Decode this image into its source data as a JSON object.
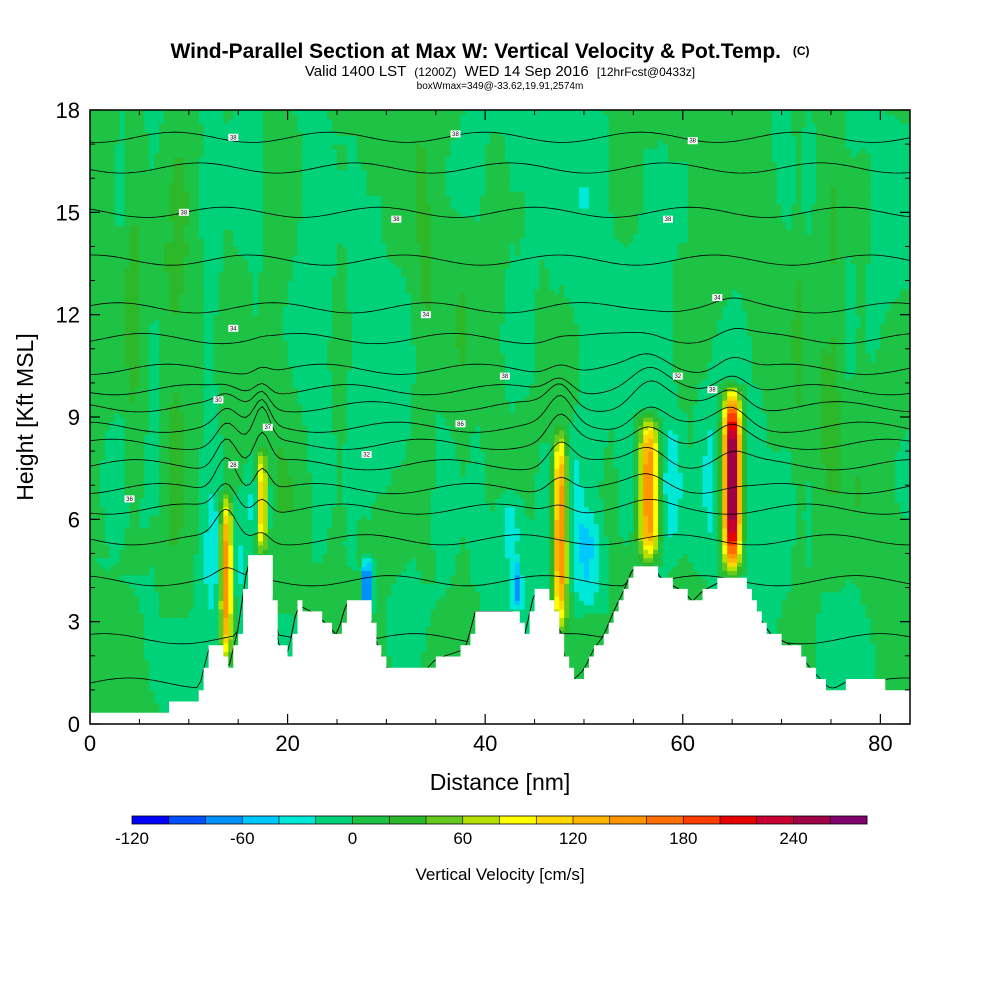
{
  "chart_data": {
    "type": "heatmap",
    "title": "Wind-Parallel Section at Max W: Vertical Velocity & Pot.Temp.",
    "title_mark": "(C)",
    "subtitle_parts": [
      "Valid 1400 LST",
      "(1200Z)",
      "WED 14 Sep 2016",
      "[12hrFcst@0433z]"
    ],
    "subtitle2": "boxWmax=349@-33.62,19.91,2574m",
    "xlabel": "Distance [nm]",
    "ylabel": "Height [Kft MSL]",
    "xlim": [
      0,
      83
    ],
    "ylim": [
      0,
      18
    ],
    "x_ticks": [
      "0",
      "20",
      "40",
      "60",
      "80"
    ],
    "y_ticks": [
      "0",
      "3",
      "6",
      "9",
      "12",
      "15",
      "18"
    ],
    "colorbar": {
      "title": "Vertical Velocity [cm/s]",
      "min": -120,
      "max": 280,
      "step": 20,
      "labels": [
        "-120",
        "-60",
        "0",
        "60",
        "120",
        "180",
        "240"
      ],
      "colors": [
        "#0000ff",
        "#0050ff",
        "#0090ff",
        "#00c8ff",
        "#00e8d8",
        "#00d27a",
        "#1ec244",
        "#2db82a",
        "#64c81e",
        "#b4e000",
        "#ffff00",
        "#ffd800",
        "#ffb400",
        "#ff9600",
        "#ff6e00",
        "#ff3c00",
        "#e60000",
        "#c80032",
        "#a00046",
        "#82006e"
      ]
    },
    "ground_profile": [
      {
        "x": 0,
        "h": 0.35
      },
      {
        "x": 5,
        "h": 0.35
      },
      {
        "x": 10,
        "h": 0.6
      },
      {
        "x": 11,
        "h": 1.0
      },
      {
        "x": 12,
        "h": 2.2
      },
      {
        "x": 13,
        "h": 2.2
      },
      {
        "x": 14,
        "h": 1.6
      },
      {
        "x": 15,
        "h": 2.8
      },
      {
        "x": 16,
        "h": 4.8
      },
      {
        "x": 18,
        "h": 4.8
      },
      {
        "x": 19,
        "h": 2.4
      },
      {
        "x": 20,
        "h": 2.0
      },
      {
        "x": 21,
        "h": 3.5
      },
      {
        "x": 23,
        "h": 3.2
      },
      {
        "x": 25,
        "h": 2.6
      },
      {
        "x": 26,
        "h": 3.6
      },
      {
        "x": 28,
        "h": 3.6
      },
      {
        "x": 29,
        "h": 2.4
      },
      {
        "x": 30,
        "h": 1.6
      },
      {
        "x": 34,
        "h": 1.6
      },
      {
        "x": 35,
        "h": 1.9
      },
      {
        "x": 38,
        "h": 2.2
      },
      {
        "x": 39,
        "h": 3.3
      },
      {
        "x": 43,
        "h": 3.3
      },
      {
        "x": 44,
        "h": 2.6
      },
      {
        "x": 45,
        "h": 3.9
      },
      {
        "x": 46,
        "h": 3.9
      },
      {
        "x": 47,
        "h": 3.3
      },
      {
        "x": 48,
        "h": 2.0
      },
      {
        "x": 49,
        "h": 1.3
      },
      {
        "x": 50,
        "h": 1.6
      },
      {
        "x": 51,
        "h": 2.2
      },
      {
        "x": 52,
        "h": 2.6
      },
      {
        "x": 53,
        "h": 3.3
      },
      {
        "x": 54,
        "h": 3.9
      },
      {
        "x": 55,
        "h": 4.6
      },
      {
        "x": 57,
        "h": 4.6
      },
      {
        "x": 58,
        "h": 4.2
      },
      {
        "x": 60,
        "h": 3.9
      },
      {
        "x": 61,
        "h": 3.6
      },
      {
        "x": 62,
        "h": 3.9
      },
      {
        "x": 64,
        "h": 4.2
      },
      {
        "x": 66,
        "h": 4.2
      },
      {
        "x": 67,
        "h": 3.6
      },
      {
        "x": 68,
        "h": 3.0
      },
      {
        "x": 69,
        "h": 2.6
      },
      {
        "x": 71,
        "h": 2.3
      },
      {
        "x": 72,
        "h": 2.0
      },
      {
        "x": 73,
        "h": 1.6
      },
      {
        "x": 74,
        "h": 1.3
      },
      {
        "x": 75,
        "h": 1.0
      },
      {
        "x": 77,
        "h": 1.3
      },
      {
        "x": 80,
        "h": 1.3
      },
      {
        "x": 81,
        "h": 1.0
      },
      {
        "x": 83,
        "h": 1.0
      }
    ],
    "updrafts": [
      {
        "x": 13.8,
        "base": 1.6,
        "top": 7.0,
        "peak": 150,
        "halfwidth": 0.6
      },
      {
        "x": 17.4,
        "base": 4.8,
        "top": 8.2,
        "peak": 110,
        "halfwidth": 0.45
      },
      {
        "x": 47.6,
        "base": 2.5,
        "top": 8.9,
        "peak": 160,
        "halfwidth": 0.7
      },
      {
        "x": 56.6,
        "base": 4.6,
        "top": 9.3,
        "peak": 170,
        "halfwidth": 1.0
      },
      {
        "x": 65.0,
        "base": 4.2,
        "top": 10.1,
        "peak": 280,
        "halfwidth": 0.9
      }
    ],
    "downdrafts": [
      {
        "x": 28.0,
        "base": 3.0,
        "top": 5.0,
        "peak": -110,
        "halfwidth": 0.5
      },
      {
        "x": 43.2,
        "base": 3.3,
        "top": 5.0,
        "peak": -70,
        "halfwidth": 0.5
      },
      {
        "x": 50.5,
        "base": 3.0,
        "top": 6.5,
        "peak": -40,
        "halfwidth": 1.2
      },
      {
        "x": 42.5,
        "base": 4.5,
        "top": 7.0,
        "peak": -35,
        "halfwidth": 1.2
      }
    ],
    "theta_contours": [
      {
        "base": 1.2,
        "amp": 0.4
      },
      {
        "base": 2.5,
        "amp": 0.8
      },
      {
        "base": 4.2,
        "amp": 1.0
      },
      {
        "base": 5.4,
        "amp": 1.2
      },
      {
        "base": 6.3,
        "amp": 0.8
      },
      {
        "base": 6.9,
        "amp": 0.9
      },
      {
        "base": 7.6,
        "amp": 0.9
      },
      {
        "base": 8.2,
        "amp": 0.8
      },
      {
        "base": 8.7,
        "amp": 0.7
      },
      {
        "base": 9.3,
        "amp": 0.6
      },
      {
        "base": 9.8,
        "amp": 0.5
      },
      {
        "base": 10.4,
        "amp": 0.4
      },
      {
        "base": 11.3,
        "amp": 0.3
      },
      {
        "base": 12.2,
        "amp": 0.3
      },
      {
        "base": 13.6,
        "amp": 0.2
      },
      {
        "base": 15.0,
        "amp": 0.2
      },
      {
        "base": 16.3,
        "amp": 0.15
      },
      {
        "base": 17.2,
        "amp": 0.1
      }
    ],
    "contour_labels": [
      {
        "x": 4.0,
        "y": 6.6,
        "text": "36"
      },
      {
        "x": 14.5,
        "y": 7.6,
        "text": "28"
      },
      {
        "x": 18.0,
        "y": 8.7,
        "text": "37"
      },
      {
        "x": 13.0,
        "y": 9.5,
        "text": "30"
      },
      {
        "x": 28.0,
        "y": 7.9,
        "text": "32"
      },
      {
        "x": 37.5,
        "y": 8.8,
        "text": "86"
      },
      {
        "x": 14.5,
        "y": 11.6,
        "text": "34"
      },
      {
        "x": 34.0,
        "y": 12.0,
        "text": "34"
      },
      {
        "x": 42.0,
        "y": 10.2,
        "text": "38"
      },
      {
        "x": 59.5,
        "y": 10.2,
        "text": "32"
      },
      {
        "x": 63.0,
        "y": 9.8,
        "text": "38"
      },
      {
        "x": 63.5,
        "y": 12.5,
        "text": "34"
      },
      {
        "x": 9.5,
        "y": 15.0,
        "text": "38"
      },
      {
        "x": 31.0,
        "y": 14.8,
        "text": "38"
      },
      {
        "x": 58.5,
        "y": 14.8,
        "text": "38"
      },
      {
        "x": 14.5,
        "y": 17.2,
        "text": "38"
      },
      {
        "x": 37.0,
        "y": 17.3,
        "text": "38"
      },
      {
        "x": 61.0,
        "y": 17.1,
        "text": "38"
      }
    ]
  }
}
